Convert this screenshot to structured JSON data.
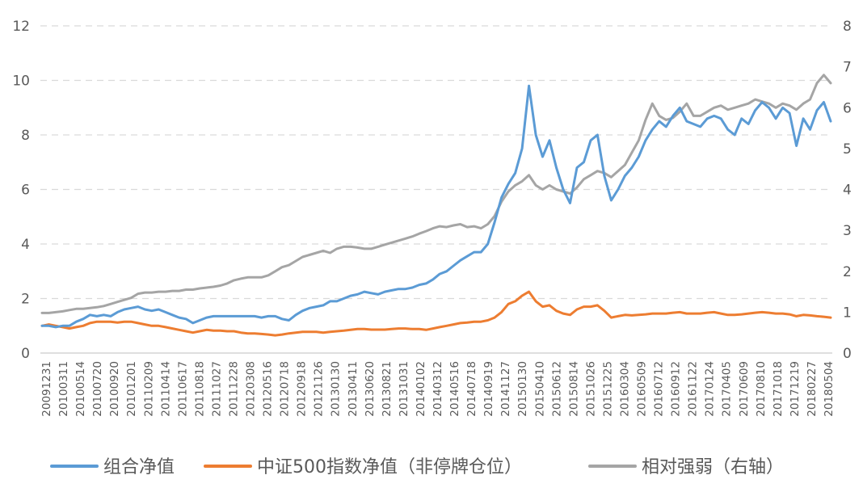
{
  "chart_data": {
    "type": "line",
    "title": "",
    "xlabel": "",
    "ylabel": "",
    "y_left": {
      "min": 0,
      "max": 12,
      "ticks": [
        "0",
        "2",
        "4",
        "6",
        "8",
        "10",
        "12"
      ]
    },
    "y_right": {
      "min": 0,
      "max": 8,
      "ticks": [
        "0",
        "1",
        "2",
        "3",
        "4",
        "5",
        "6",
        "7",
        "8"
      ]
    },
    "grid": true,
    "legend_position": "bottom",
    "x_ticks": [
      "20091231",
      "20100311",
      "20100514",
      "20100720",
      "20100920",
      "20101201",
      "20110209",
      "20110414",
      "20110617",
      "20110818",
      "20111027",
      "20111228",
      "20120308",
      "20120516",
      "20120718",
      "20120918",
      "20121126",
      "20130130",
      "20130411",
      "20130620",
      "20130821",
      "20131031",
      "20140102",
      "20140312",
      "20140516",
      "20140718",
      "20140919",
      "20141127",
      "20150130",
      "20150410",
      "20150612",
      "20150814",
      "20151026",
      "20151225",
      "20160304",
      "20160509",
      "20160712",
      "20160912",
      "20161122",
      "20170124",
      "20170405",
      "20170609",
      "20170810",
      "20171018",
      "20171219",
      "20180227",
      "20180504"
    ],
    "series": [
      {
        "name": "组合净值",
        "axis": "left",
        "color": "#5b9bd5",
        "values": [
          1.0,
          1.0,
          0.95,
          1.0,
          1.0,
          1.15,
          1.25,
          1.4,
          1.35,
          1.4,
          1.35,
          1.5,
          1.6,
          1.65,
          1.7,
          1.6,
          1.55,
          1.6,
          1.5,
          1.4,
          1.3,
          1.25,
          1.1,
          1.2,
          1.3,
          1.35,
          1.35,
          1.35,
          1.35,
          1.35,
          1.35,
          1.35,
          1.3,
          1.35,
          1.35,
          1.25,
          1.2,
          1.4,
          1.55,
          1.65,
          1.7,
          1.75,
          1.9,
          1.9,
          2.0,
          2.1,
          2.15,
          2.25,
          2.2,
          2.15,
          2.25,
          2.3,
          2.35,
          2.35,
          2.4,
          2.5,
          2.55,
          2.7,
          2.9,
          3.0,
          3.2,
          3.4,
          3.55,
          3.7,
          3.7,
          4.0,
          4.8,
          5.7,
          6.2,
          6.6,
          7.5,
          9.8,
          8.0,
          7.2,
          7.8,
          6.8,
          6.0,
          5.5,
          6.8,
          7.0,
          7.8,
          8.0,
          6.5,
          5.6,
          6.0,
          6.5,
          6.8,
          7.2,
          7.8,
          8.2,
          8.5,
          8.3,
          8.7,
          9.0,
          8.5,
          8.4,
          8.3,
          8.6,
          8.7,
          8.6,
          8.2,
          8.0,
          8.6,
          8.4,
          8.9,
          9.2,
          9.0,
          8.6,
          9.0,
          8.8,
          7.6,
          8.6,
          8.2,
          8.9,
          9.2,
          8.5
        ]
      },
      {
        "name": "中证500指数净值（非停牌仓位）",
        "axis": "left",
        "color": "#ed7d31",
        "values": [
          1.0,
          1.05,
          1.0,
          0.95,
          0.9,
          0.95,
          1.0,
          1.1,
          1.15,
          1.15,
          1.15,
          1.12,
          1.15,
          1.15,
          1.1,
          1.05,
          1.0,
          1.0,
          0.95,
          0.9,
          0.85,
          0.8,
          0.75,
          0.8,
          0.85,
          0.82,
          0.82,
          0.8,
          0.8,
          0.75,
          0.72,
          0.72,
          0.7,
          0.68,
          0.65,
          0.68,
          0.72,
          0.75,
          0.78,
          0.78,
          0.78,
          0.75,
          0.78,
          0.8,
          0.82,
          0.85,
          0.88,
          0.88,
          0.86,
          0.86,
          0.86,
          0.88,
          0.9,
          0.9,
          0.88,
          0.88,
          0.85,
          0.9,
          0.95,
          1.0,
          1.05,
          1.1,
          1.12,
          1.15,
          1.15,
          1.2,
          1.3,
          1.5,
          1.8,
          1.9,
          2.1,
          2.25,
          1.9,
          1.7,
          1.75,
          1.55,
          1.45,
          1.4,
          1.6,
          1.7,
          1.7,
          1.75,
          1.55,
          1.3,
          1.35,
          1.4,
          1.38,
          1.4,
          1.42,
          1.45,
          1.45,
          1.45,
          1.48,
          1.5,
          1.45,
          1.45,
          1.45,
          1.48,
          1.5,
          1.45,
          1.4,
          1.4,
          1.42,
          1.45,
          1.48,
          1.5,
          1.48,
          1.45,
          1.45,
          1.42,
          1.35,
          1.4,
          1.38,
          1.35,
          1.33,
          1.3
        ]
      },
      {
        "name": "相对强弱（右轴）",
        "axis": "right",
        "color": "#a5a5a5",
        "values": [
          0.98,
          0.98,
          1.0,
          1.02,
          1.05,
          1.08,
          1.08,
          1.1,
          1.12,
          1.15,
          1.2,
          1.25,
          1.3,
          1.35,
          1.45,
          1.48,
          1.48,
          1.5,
          1.5,
          1.52,
          1.52,
          1.55,
          1.55,
          1.58,
          1.6,
          1.62,
          1.65,
          1.7,
          1.78,
          1.82,
          1.85,
          1.85,
          1.85,
          1.9,
          2.0,
          2.1,
          2.15,
          2.25,
          2.35,
          2.4,
          2.45,
          2.5,
          2.45,
          2.55,
          2.6,
          2.6,
          2.58,
          2.55,
          2.55,
          2.6,
          2.65,
          2.7,
          2.75,
          2.8,
          2.85,
          2.92,
          2.98,
          3.05,
          3.1,
          3.08,
          3.12,
          3.15,
          3.08,
          3.1,
          3.05,
          3.15,
          3.35,
          3.7,
          3.95,
          4.1,
          4.2,
          4.35,
          4.1,
          4.0,
          4.1,
          4.0,
          3.95,
          3.9,
          4.05,
          4.25,
          4.35,
          4.45,
          4.4,
          4.3,
          4.45,
          4.6,
          4.9,
          5.2,
          5.7,
          6.1,
          5.8,
          5.7,
          5.75,
          5.9,
          6.1,
          5.8,
          5.8,
          5.9,
          6.0,
          6.05,
          5.95,
          6.0,
          6.05,
          6.1,
          6.2,
          6.15,
          6.1,
          6.0,
          6.1,
          6.05,
          5.95,
          6.1,
          6.2,
          6.6,
          6.8,
          6.6
        ]
      }
    ]
  }
}
